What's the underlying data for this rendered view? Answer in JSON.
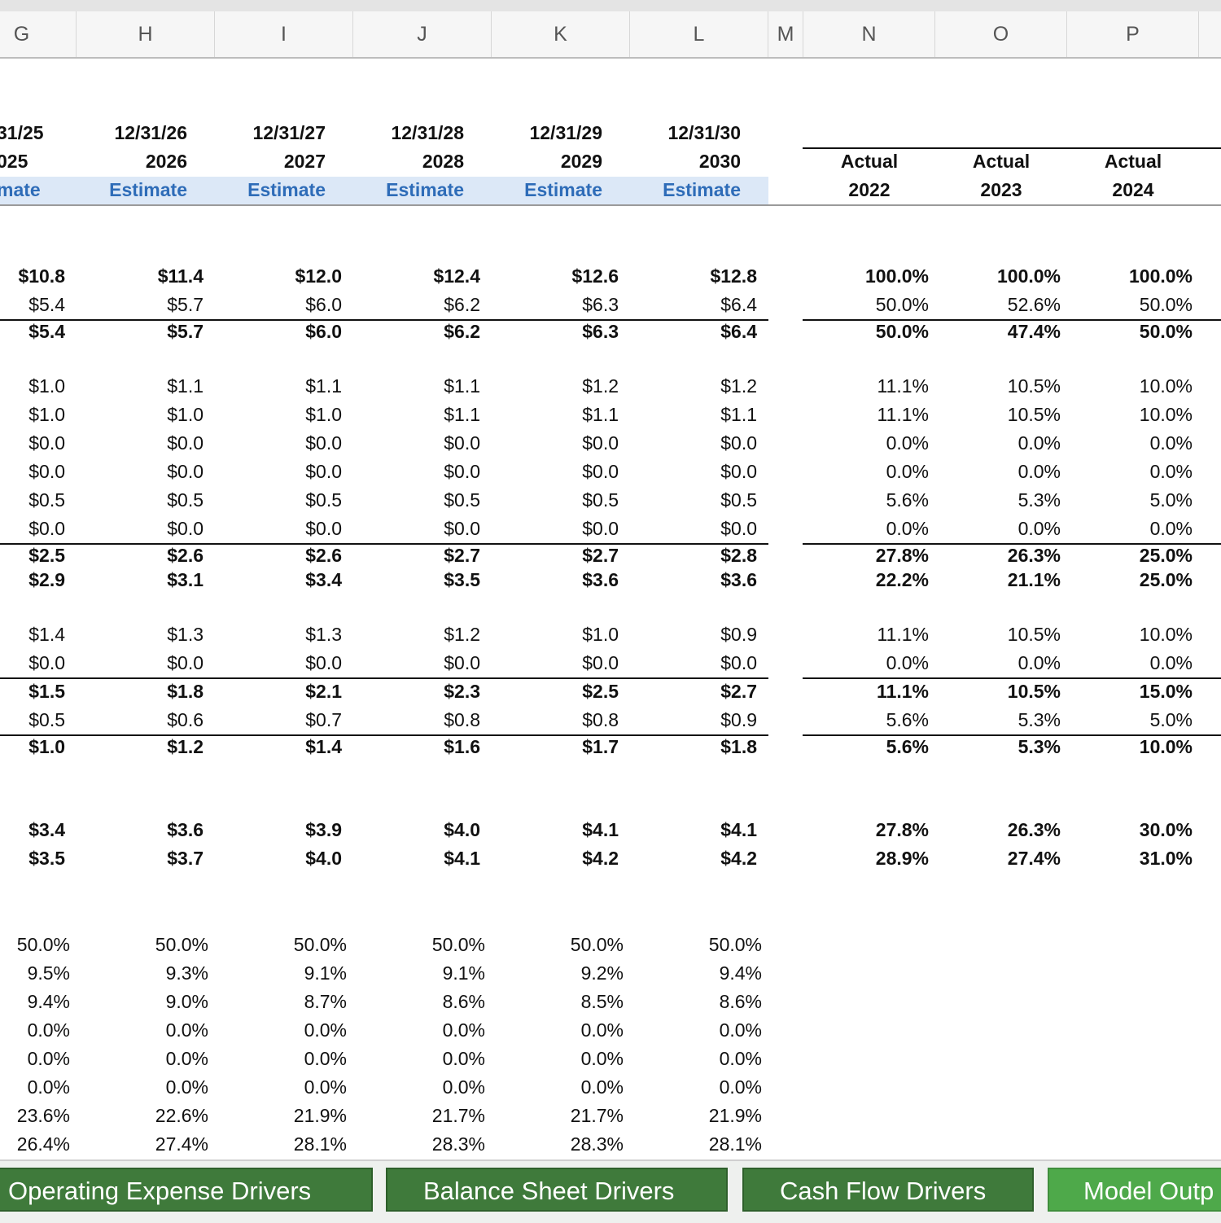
{
  "column_letters": [
    "G",
    "H",
    "I",
    "J",
    "K",
    "L",
    "M",
    "N",
    "O",
    "P"
  ],
  "periods": [
    {
      "date": "31/25",
      "year": "025",
      "type": "mate"
    },
    {
      "date": "12/31/26",
      "year": "2026",
      "type": "Estimate"
    },
    {
      "date": "12/31/27",
      "year": "2027",
      "type": "Estimate"
    },
    {
      "date": "12/31/28",
      "year": "2028",
      "type": "Estimate"
    },
    {
      "date": "12/31/29",
      "year": "2029",
      "type": "Estimate"
    },
    {
      "date": "12/31/30",
      "year": "2030",
      "type": "Estimate"
    }
  ],
  "actuals": [
    {
      "label": "Actual",
      "year": "2022"
    },
    {
      "label": "Actual",
      "year": "2023"
    },
    {
      "label": "Actual",
      "year": "2024"
    }
  ],
  "rows": [
    {
      "vals": [
        "$10.8",
        "$11.4",
        "$12.0",
        "$12.4",
        "$12.6",
        "$12.8"
      ],
      "pcts": [
        "100.0%",
        "100.0%",
        "100.0%"
      ]
    },
    {
      "vals": [
        "$5.4",
        "$5.7",
        "$6.0",
        "$6.2",
        "$6.3",
        "$6.4"
      ],
      "pcts": [
        "50.0%",
        "52.6%",
        "50.0%"
      ]
    },
    {
      "vals": [
        "$5.4",
        "$5.7",
        "$6.0",
        "$6.2",
        "$6.3",
        "$6.4"
      ],
      "pcts": [
        "50.0%",
        "47.4%",
        "50.0%"
      ]
    },
    {
      "vals": [
        "$1.0",
        "$1.1",
        "$1.1",
        "$1.1",
        "$1.2",
        "$1.2"
      ],
      "pcts": [
        "11.1%",
        "10.5%",
        "10.0%"
      ]
    },
    {
      "vals": [
        "$1.0",
        "$1.0",
        "$1.0",
        "$1.1",
        "$1.1",
        "$1.1"
      ],
      "pcts": [
        "11.1%",
        "10.5%",
        "10.0%"
      ]
    },
    {
      "vals": [
        "$0.0",
        "$0.0",
        "$0.0",
        "$0.0",
        "$0.0",
        "$0.0"
      ],
      "pcts": [
        "0.0%",
        "0.0%",
        "0.0%"
      ]
    },
    {
      "vals": [
        "$0.0",
        "$0.0",
        "$0.0",
        "$0.0",
        "$0.0",
        "$0.0"
      ],
      "pcts": [
        "0.0%",
        "0.0%",
        "0.0%"
      ]
    },
    {
      "vals": [
        "$0.5",
        "$0.5",
        "$0.5",
        "$0.5",
        "$0.5",
        "$0.5"
      ],
      "pcts": [
        "5.6%",
        "5.3%",
        "5.0%"
      ]
    },
    {
      "vals": [
        "$0.0",
        "$0.0",
        "$0.0",
        "$0.0",
        "$0.0",
        "$0.0"
      ],
      "pcts": [
        "0.0%",
        "0.0%",
        "0.0%"
      ]
    },
    {
      "vals": [
        "$2.5",
        "$2.6",
        "$2.6",
        "$2.7",
        "$2.7",
        "$2.8"
      ],
      "pcts": [
        "27.8%",
        "26.3%",
        "25.0%"
      ]
    },
    {
      "vals": [
        "$2.9",
        "$3.1",
        "$3.4",
        "$3.5",
        "$3.6",
        "$3.6"
      ],
      "pcts": [
        "22.2%",
        "21.1%",
        "25.0%"
      ]
    },
    {
      "vals": [
        "$1.4",
        "$1.3",
        "$1.3",
        "$1.2",
        "$1.0",
        "$0.9"
      ],
      "pcts": [
        "11.1%",
        "10.5%",
        "10.0%"
      ]
    },
    {
      "vals": [
        "$0.0",
        "$0.0",
        "$0.0",
        "$0.0",
        "$0.0",
        "$0.0"
      ],
      "pcts": [
        "0.0%",
        "0.0%",
        "0.0%"
      ]
    },
    {
      "vals": [
        "$1.5",
        "$1.8",
        "$2.1",
        "$2.3",
        "$2.5",
        "$2.7"
      ],
      "pcts": [
        "11.1%",
        "10.5%",
        "15.0%"
      ]
    },
    {
      "vals": [
        "$0.5",
        "$0.6",
        "$0.7",
        "$0.8",
        "$0.8",
        "$0.9"
      ],
      "pcts": [
        "5.6%",
        "5.3%",
        "5.0%"
      ]
    },
    {
      "vals": [
        "$1.0",
        "$1.2",
        "$1.4",
        "$1.6",
        "$1.7",
        "$1.8"
      ],
      "pcts": [
        "5.6%",
        "5.3%",
        "10.0%"
      ]
    },
    {
      "vals": [
        "$3.4",
        "$3.6",
        "$3.9",
        "$4.0",
        "$4.1",
        "$4.1"
      ],
      "pcts": [
        "27.8%",
        "26.3%",
        "30.0%"
      ]
    },
    {
      "vals": [
        "$3.5",
        "$3.7",
        "$4.0",
        "$4.1",
        "$4.2",
        "$4.2"
      ],
      "pcts": [
        "28.9%",
        "27.4%",
        "31.0%"
      ]
    }
  ],
  "ratio_rows": [
    [
      "50.0%",
      "50.0%",
      "50.0%",
      "50.0%",
      "50.0%",
      "50.0%"
    ],
    [
      "9.5%",
      "9.3%",
      "9.1%",
      "9.1%",
      "9.2%",
      "9.4%"
    ],
    [
      "9.4%",
      "9.0%",
      "8.7%",
      "8.6%",
      "8.5%",
      "8.6%"
    ],
    [
      "0.0%",
      "0.0%",
      "0.0%",
      "0.0%",
      "0.0%",
      "0.0%"
    ],
    [
      "0.0%",
      "0.0%",
      "0.0%",
      "0.0%",
      "0.0%",
      "0.0%"
    ],
    [
      "0.0%",
      "0.0%",
      "0.0%",
      "0.0%",
      "0.0%",
      "0.0%"
    ],
    [
      "23.6%",
      "22.6%",
      "21.9%",
      "21.7%",
      "21.7%",
      "21.9%"
    ],
    [
      "26.4%",
      "27.4%",
      "28.1%",
      "28.3%",
      "28.3%",
      "28.1%"
    ]
  ],
  "tabs": [
    {
      "label": "Operating Expense Drivers"
    },
    {
      "label": "Balance Sheet Drivers"
    },
    {
      "label": "Cash Flow Drivers"
    },
    {
      "label": "Model Outp"
    }
  ],
  "colors": {
    "estimate_bg": "#dce8f7",
    "estimate_text": "#2e6cb8",
    "tab_green": "#3f7a3b",
    "tab_active": "#4ea94a"
  }
}
